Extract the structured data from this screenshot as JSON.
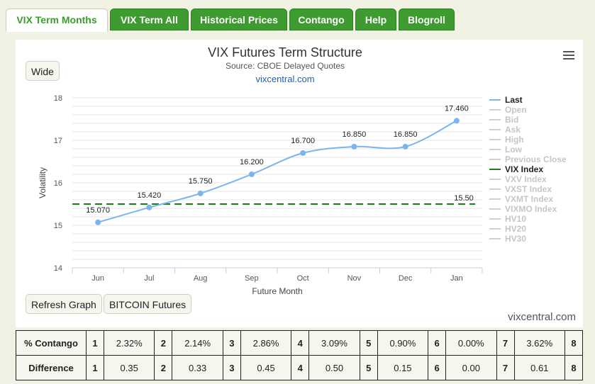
{
  "tabs": [
    {
      "label": "VIX Term Months",
      "active": true
    },
    {
      "label": "VIX Term All"
    },
    {
      "label": "Historical Prices"
    },
    {
      "label": "Contango"
    },
    {
      "label": "Help"
    },
    {
      "label": "Blogroll"
    }
  ],
  "buttons": {
    "wide": "Wide",
    "refresh": "Refresh Graph",
    "bitcoin": "BITCOIN Futures"
  },
  "watermark": "vixcentral.com",
  "chart_data": {
    "type": "line",
    "title": "VIX Futures Term Structure",
    "subtitle": "Source: CBOE Delayed Quotes",
    "link": "vixcentral.com",
    "xlabel": "Future Month",
    "ylabel": "Volatility",
    "categories": [
      "Jun",
      "Jul",
      "Aug",
      "Sep",
      "Oct",
      "Nov",
      "Dec",
      "Jan"
    ],
    "ylim": [
      14,
      18
    ],
    "yticks": [
      "14",
      "15",
      "16",
      "17",
      "18"
    ],
    "series": [
      {
        "name": "Last",
        "values": [
          15.07,
          15.42,
          15.75,
          16.2,
          16.7,
          16.85,
          16.85,
          17.46
        ],
        "labels": [
          "15.070",
          "15.420",
          "15.750",
          "16.200",
          "16.700",
          "16.850",
          "16.850",
          "17.460"
        ],
        "color": "#7cb5ec"
      },
      {
        "name": "VIX Index",
        "value": 15.5,
        "label": "15.50",
        "color": "#1a7f1a"
      }
    ],
    "legend": [
      {
        "name": "Last",
        "active": true,
        "color": "#7cb5ec"
      },
      {
        "name": "Open",
        "active": false
      },
      {
        "name": "Bid",
        "active": false
      },
      {
        "name": "Ask",
        "active": false
      },
      {
        "name": "High",
        "active": false
      },
      {
        "name": "Low",
        "active": false
      },
      {
        "name": "Previous Close",
        "active": false
      },
      {
        "name": "VIX Index",
        "active": true,
        "color": "#1a7f1a"
      },
      {
        "name": "VXV Index",
        "active": false
      },
      {
        "name": "VXST Index",
        "active": false
      },
      {
        "name": "VXMT Index",
        "active": false
      },
      {
        "name": "VIXMO Index",
        "active": false
      },
      {
        "name": "HV10",
        "active": false
      },
      {
        "name": "HV20",
        "active": false
      },
      {
        "name": "HV30",
        "active": false
      }
    ],
    "legend_position": "right",
    "grid": true
  },
  "table": {
    "rows": [
      {
        "head": "% Contango",
        "cells": [
          [
            "1",
            "2.32%"
          ],
          [
            "2",
            "2.14%"
          ],
          [
            "3",
            "2.86%"
          ],
          [
            "4",
            "3.09%"
          ],
          [
            "5",
            "0.90%"
          ],
          [
            "6",
            "0.00%"
          ],
          [
            "7",
            "3.62%"
          ],
          [
            "8",
            ""
          ]
        ]
      },
      {
        "head": "Difference",
        "cells": [
          [
            "1",
            "0.35"
          ],
          [
            "2",
            "0.33"
          ],
          [
            "3",
            "0.45"
          ],
          [
            "4",
            "0.50"
          ],
          [
            "5",
            "0.15"
          ],
          [
            "6",
            "0.00"
          ],
          [
            "7",
            "0.61"
          ],
          [
            "8",
            ""
          ]
        ]
      }
    ]
  }
}
